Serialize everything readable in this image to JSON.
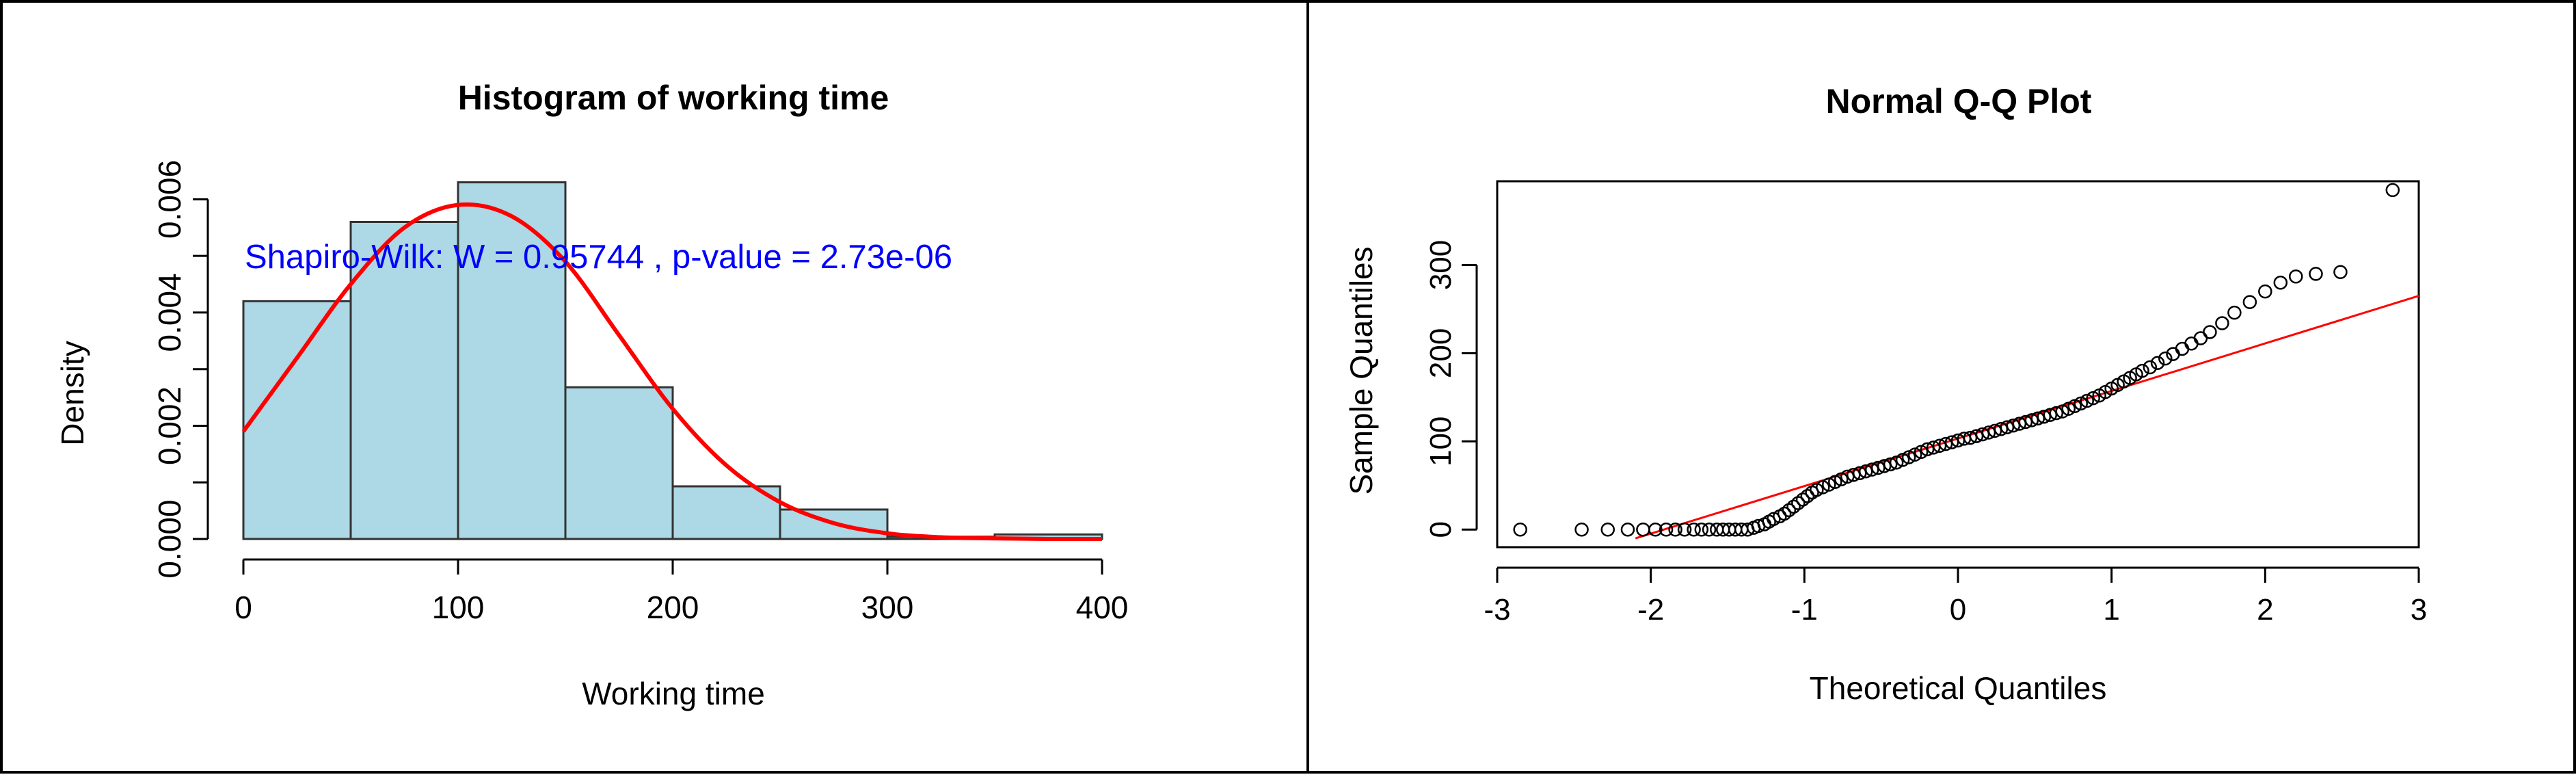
{
  "chart_data": [
    {
      "type": "bar",
      "title": "Histogram of working time",
      "xlabel": "Working time",
      "ylabel": "Density",
      "xlim": [
        0,
        400
      ],
      "ylim": [
        0,
        0.0065
      ],
      "x_ticks": [
        "0",
        "100",
        "200",
        "300",
        "400"
      ],
      "y_ticks": [
        "0.000",
        "0.002",
        "0.004",
        "0.006"
      ],
      "bins": [
        {
          "from": 0,
          "to": 50,
          "value": 0.0042
        },
        {
          "from": 50,
          "to": 100,
          "value": 0.0056
        },
        {
          "from": 100,
          "to": 150,
          "value": 0.0063
        },
        {
          "from": 150,
          "to": 200,
          "value": 0.00268
        },
        {
          "from": 200,
          "to": 250,
          "value": 0.00093
        },
        {
          "from": 250,
          "to": 300,
          "value": 0.00052
        },
        {
          "from": 300,
          "to": 350,
          "value": 4e-05
        },
        {
          "from": 350,
          "to": 400,
          "value": 8e-05
        }
      ],
      "density_curve": {
        "x": [
          0,
          25,
          50,
          75,
          100,
          125,
          150,
          175,
          200,
          225,
          250,
          275,
          300,
          325,
          350,
          375,
          400
        ],
        "y": [
          0.0019,
          0.0032,
          0.0045,
          0.0055,
          0.0059,
          0.0057,
          0.0049,
          0.0036,
          0.0023,
          0.0013,
          0.00065,
          0.00028,
          0.0001,
          3e-05,
          1e-05,
          0.0,
          0.0
        ]
      },
      "annotation": "Shapiro-Wilk: W =  0.95744 , p-value =  2.73e-06",
      "colors": {
        "bar_fill": "#add8e6",
        "bar_stroke": "#333333",
        "curve": "#ff0000",
        "annotation": "#0000ff"
      }
    },
    {
      "type": "scatter",
      "title": "Normal Q-Q Plot",
      "xlabel": "Theoretical Quantiles",
      "ylabel": "Sample Quantiles",
      "xlim": [
        -3,
        3
      ],
      "ylim": [
        -20,
        395
      ],
      "x_ticks": [
        "-3",
        "-2",
        "-1",
        "0",
        "1",
        "2",
        "3"
      ],
      "y_ticks": [
        "0",
        "100",
        "200",
        "300"
      ],
      "points": [
        [
          -2.85,
          0
        ],
        [
          -2.45,
          0
        ],
        [
          -2.28,
          0
        ],
        [
          -2.15,
          0
        ],
        [
          -2.05,
          0
        ],
        [
          -1.97,
          0
        ],
        [
          -1.9,
          0
        ],
        [
          -1.84,
          0
        ],
        [
          -1.78,
          0
        ],
        [
          -1.72,
          0
        ],
        [
          -1.67,
          0
        ],
        [
          -1.62,
          0
        ],
        [
          -1.57,
          0
        ],
        [
          -1.53,
          0
        ],
        [
          -1.49,
          0
        ],
        [
          -1.45,
          0
        ],
        [
          -1.41,
          0
        ],
        [
          -1.37,
          0
        ],
        [
          -1.33,
          2
        ],
        [
          -1.3,
          4
        ],
        [
          -1.26,
          6
        ],
        [
          -1.23,
          9
        ],
        [
          -1.2,
          12
        ],
        [
          -1.16,
          15
        ],
        [
          -1.13,
          18
        ],
        [
          -1.1,
          22
        ],
        [
          -1.07,
          26
        ],
        [
          -1.04,
          30
        ],
        [
          -1.01,
          34
        ],
        [
          -0.98,
          38
        ],
        [
          -0.95,
          42
        ],
        [
          -0.92,
          45
        ],
        [
          -0.88,
          48
        ],
        [
          -0.84,
          51
        ],
        [
          -0.8,
          54
        ],
        [
          -0.76,
          57
        ],
        [
          -0.72,
          60
        ],
        [
          -0.68,
          62
        ],
        [
          -0.64,
          64
        ],
        [
          -0.6,
          66
        ],
        [
          -0.56,
          68
        ],
        [
          -0.52,
          70
        ],
        [
          -0.48,
          72
        ],
        [
          -0.44,
          74
        ],
        [
          -0.4,
          76
        ],
        [
          -0.36,
          79
        ],
        [
          -0.32,
          82
        ],
        [
          -0.28,
          85
        ],
        [
          -0.24,
          88
        ],
        [
          -0.2,
          91
        ],
        [
          -0.16,
          93
        ],
        [
          -0.12,
          95
        ],
        [
          -0.08,
          97
        ],
        [
          -0.04,
          99
        ],
        [
          0.0,
          101
        ],
        [
          0.04,
          103
        ],
        [
          0.08,
          104
        ],
        [
          0.12,
          106
        ],
        [
          0.16,
          108
        ],
        [
          0.2,
          110
        ],
        [
          0.24,
          112
        ],
        [
          0.28,
          114
        ],
        [
          0.32,
          116
        ],
        [
          0.36,
          118
        ],
        [
          0.4,
          120
        ],
        [
          0.44,
          122
        ],
        [
          0.48,
          124
        ],
        [
          0.52,
          126
        ],
        [
          0.56,
          128
        ],
        [
          0.6,
          130
        ],
        [
          0.64,
          132
        ],
        [
          0.68,
          134
        ],
        [
          0.72,
          137
        ],
        [
          0.76,
          140
        ],
        [
          0.8,
          143
        ],
        [
          0.84,
          146
        ],
        [
          0.88,
          149
        ],
        [
          0.92,
          152
        ],
        [
          0.96,
          156
        ],
        [
          1.0,
          160
        ],
        [
          1.04,
          164
        ],
        [
          1.08,
          168
        ],
        [
          1.12,
          172
        ],
        [
          1.16,
          176
        ],
        [
          1.2,
          180
        ],
        [
          1.25,
          184
        ],
        [
          1.3,
          189
        ],
        [
          1.35,
          194
        ],
        [
          1.4,
          199
        ],
        [
          1.46,
          205
        ],
        [
          1.52,
          211
        ],
        [
          1.58,
          217
        ],
        [
          1.64,
          224
        ],
        [
          1.72,
          234
        ],
        [
          1.8,
          246
        ],
        [
          1.9,
          258
        ],
        [
          2.0,
          270
        ],
        [
          2.1,
          280
        ],
        [
          2.2,
          287
        ],
        [
          2.33,
          290
        ],
        [
          2.49,
          292
        ],
        [
          2.83,
          385
        ]
      ],
      "reference_line": {
        "x": [
          -2.1,
          3.0
        ],
        "y": [
          -10,
          265
        ]
      },
      "colors": {
        "points": "#000000",
        "line": "#ff0000"
      }
    }
  ]
}
